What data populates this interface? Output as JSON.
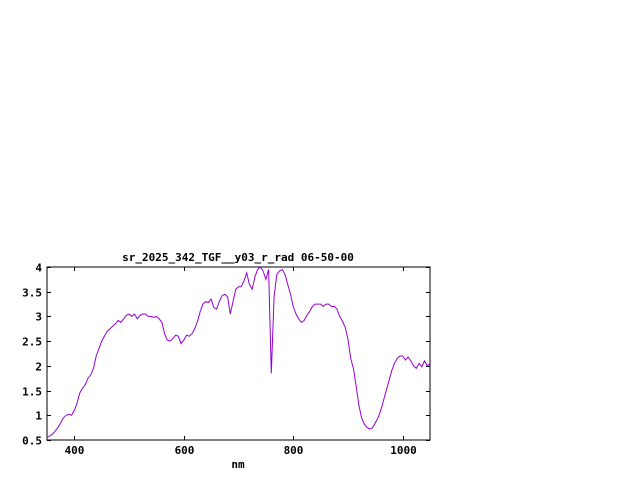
{
  "page": {
    "background_color": "#ffffff",
    "axis_color": "#000000"
  },
  "chart_data": {
    "type": "line",
    "title": "sr_2025_342_TGF__y03_r_rad 06-50-00",
    "xlabel": "nm",
    "ylabel": "",
    "xlim": [
      350,
      1050
    ],
    "ylim": [
      0.5,
      4
    ],
    "xticks": [
      400,
      600,
      800,
      1000
    ],
    "yticks": [
      0.5,
      1,
      1.5,
      2,
      2.5,
      3,
      3.5,
      4
    ],
    "grid": false,
    "legend": "none",
    "series": [
      {
        "color": "#9400d3",
        "x": [
          350,
          355,
          360,
          365,
          370,
          375,
          380,
          385,
          390,
          395,
          400,
          405,
          410,
          415,
          420,
          425,
          430,
          435,
          440,
          445,
          450,
          455,
          460,
          465,
          470,
          475,
          480,
          485,
          490,
          495,
          500,
          505,
          510,
          515,
          520,
          525,
          530,
          535,
          540,
          545,
          550,
          555,
          560,
          565,
          570,
          575,
          580,
          585,
          590,
          595,
          600,
          605,
          610,
          615,
          620,
          625,
          630,
          635,
          640,
          645,
          650,
          655,
          660,
          665,
          670,
          675,
          680,
          685,
          690,
          695,
          700,
          705,
          710,
          715,
          720,
          725,
          730,
          735,
          740,
          745,
          750,
          755,
          760,
          765,
          770,
          775,
          780,
          785,
          790,
          795,
          800,
          805,
          810,
          815,
          820,
          825,
          830,
          835,
          840,
          845,
          850,
          855,
          860,
          865,
          870,
          875,
          880,
          885,
          890,
          895,
          900,
          905,
          910,
          915,
          920,
          925,
          930,
          935,
          940,
          945,
          950,
          955,
          960,
          965,
          970,
          975,
          980,
          985,
          990,
          995,
          1000,
          1005,
          1010,
          1015,
          1020,
          1025,
          1030,
          1035,
          1040,
          1045,
          1050
        ],
        "y": [
          0.55,
          0.58,
          0.62,
          0.68,
          0.75,
          0.85,
          0.95,
          1.0,
          1.02,
          1.0,
          1.1,
          1.25,
          1.45,
          1.55,
          1.62,
          1.75,
          1.82,
          1.95,
          2.2,
          2.35,
          2.5,
          2.6,
          2.7,
          2.75,
          2.8,
          2.85,
          2.92,
          2.88,
          2.95,
          3.02,
          3.05,
          3.0,
          3.05,
          2.95,
          3.02,
          3.05,
          3.05,
          3.0,
          3.0,
          2.98,
          3.0,
          2.95,
          2.88,
          2.65,
          2.52,
          2.5,
          2.55,
          2.62,
          2.6,
          2.45,
          2.52,
          2.62,
          2.6,
          2.65,
          2.75,
          2.9,
          3.1,
          3.25,
          3.3,
          3.28,
          3.35,
          3.18,
          3.15,
          3.3,
          3.42,
          3.45,
          3.4,
          3.05,
          3.3,
          3.55,
          3.6,
          3.6,
          3.72,
          3.88,
          3.65,
          3.55,
          3.8,
          3.95,
          4.0,
          3.92,
          3.75,
          3.95,
          1.85,
          3.4,
          3.85,
          3.92,
          3.95,
          3.85,
          3.65,
          3.45,
          3.2,
          3.05,
          2.95,
          2.88,
          2.92,
          3.02,
          3.1,
          3.2,
          3.25,
          3.25,
          3.25,
          3.2,
          3.25,
          3.25,
          3.2,
          3.2,
          3.15,
          3.0,
          2.9,
          2.78,
          2.55,
          2.15,
          1.95,
          1.6,
          1.2,
          0.95,
          0.82,
          0.75,
          0.72,
          0.75,
          0.85,
          0.95,
          1.1,
          1.3,
          1.5,
          1.7,
          1.9,
          2.05,
          2.15,
          2.2,
          2.2,
          2.12,
          2.18,
          2.1,
          2.0,
          1.95,
          2.05,
          1.98,
          2.1,
          2.0,
          2.05
        ]
      }
    ]
  }
}
